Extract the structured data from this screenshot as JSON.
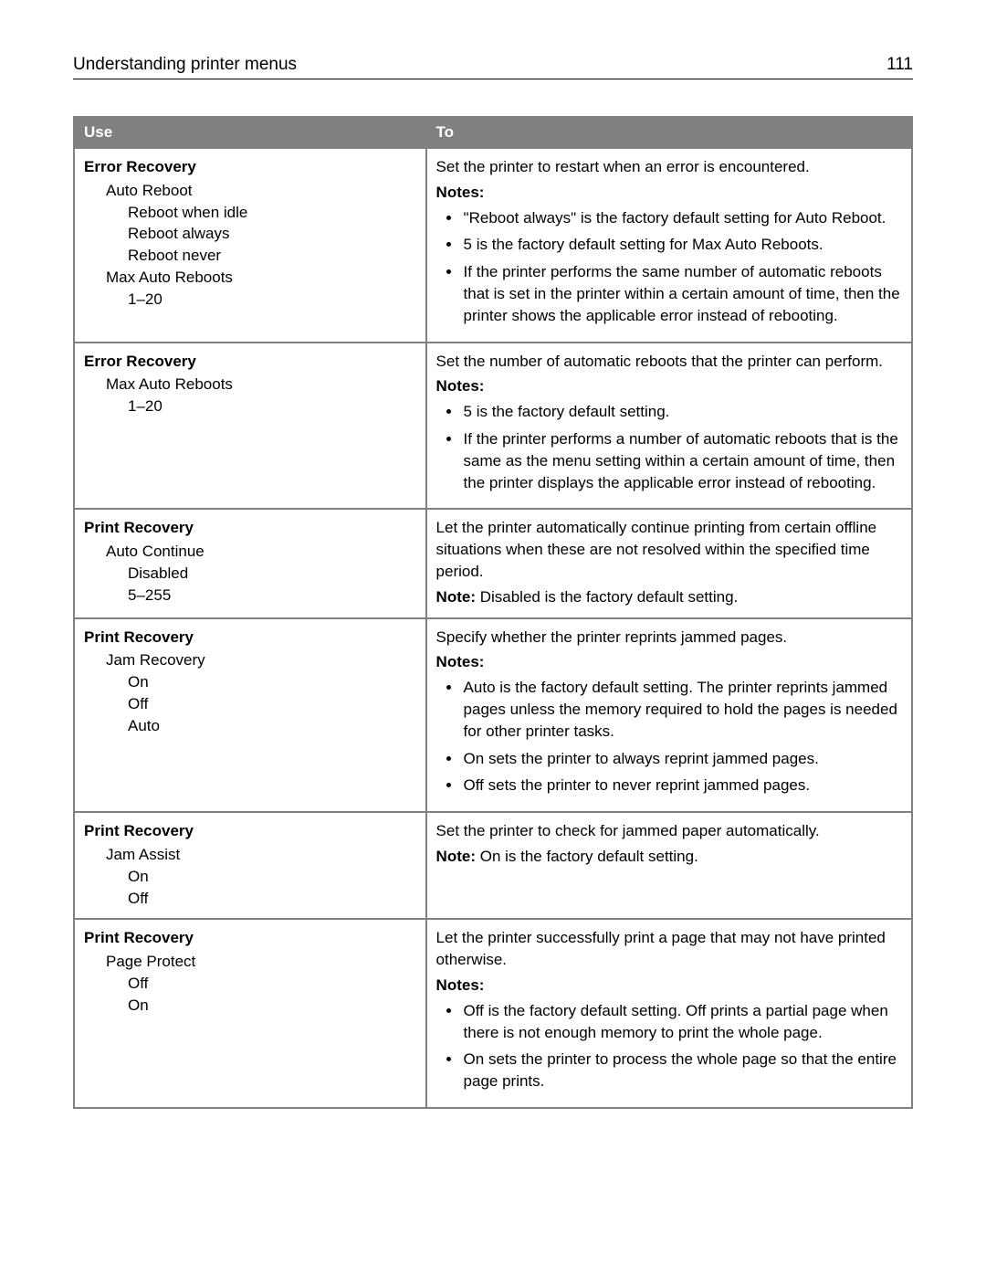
{
  "header": {
    "title": "Understanding printer menus",
    "page_number": "111"
  },
  "table": {
    "columns": {
      "use": "Use",
      "to": "To"
    }
  },
  "rows": {
    "r1": {
      "title": "Error Recovery",
      "lvl1a": "Auto Reboot",
      "lvl2a": "Reboot when idle",
      "lvl2b": "Reboot always",
      "lvl2c": "Reboot never",
      "lvl1b": "Max Auto Reboots",
      "lvl2d": "1–20",
      "desc": "Set the printer to restart when an error is encountered.",
      "notes_label": "Notes:",
      "n1": "\"Reboot always\" is the factory default setting for Auto Reboot.",
      "n2": "5 is the factory default setting for Max Auto Reboots.",
      "n3": "If the printer performs the same number of automatic reboots that is set in the printer within a certain amount of time, then the printer shows the applicable error instead of rebooting."
    },
    "r2": {
      "title": "Error Recovery",
      "lvl1a": "Max Auto Reboots",
      "lvl2a": "1–20",
      "desc": "Set the number of automatic reboots that the printer can perform.",
      "notes_label": "Notes:",
      "n1": "5 is the factory default setting.",
      "n2": "If the printer performs a number of automatic reboots that is the same as the menu setting within a certain amount of time, then the printer displays the applicable error instead of rebooting."
    },
    "r3": {
      "title": "Print Recovery",
      "lvl1a": "Auto Continue",
      "lvl2a": "Disabled",
      "lvl2b": "5–255",
      "desc": "Let the printer automatically continue printing from certain offline situations when these are not resolved within the specified time period.",
      "note_label": "Note:",
      "note_text": " Disabled is the factory default setting."
    },
    "r4": {
      "title": "Print Recovery",
      "lvl1a": "Jam Recovery",
      "lvl2a": "On",
      "lvl2b": "Off",
      "lvl2c": "Auto",
      "desc": "Specify whether the printer reprints jammed pages.",
      "notes_label": "Notes:",
      "n1": "Auto is the factory default setting. The printer reprints jammed pages unless the memory required to hold the pages is needed for other printer tasks.",
      "n2": "On sets the printer to always reprint jammed pages.",
      "n3": "Off sets the printer to never reprint jammed pages."
    },
    "r5": {
      "title": "Print Recovery",
      "lvl1a": "Jam Assist",
      "lvl2a": "On",
      "lvl2b": "Off",
      "desc": "Set the printer to check for jammed paper automatically.",
      "note_label": "Note:",
      "note_text": " On is the factory default setting."
    },
    "r6": {
      "title": "Print Recovery",
      "lvl1a": "Page Protect",
      "lvl2a": "Off",
      "lvl2b": "On",
      "desc": "Let the printer successfully print a page that may not have printed otherwise.",
      "notes_label": "Notes:",
      "n1": "Off is the factory default setting. Off prints a partial page when there is not enough memory to print the whole page.",
      "n2": "On sets the printer to process the whole page so that the entire page prints."
    }
  }
}
